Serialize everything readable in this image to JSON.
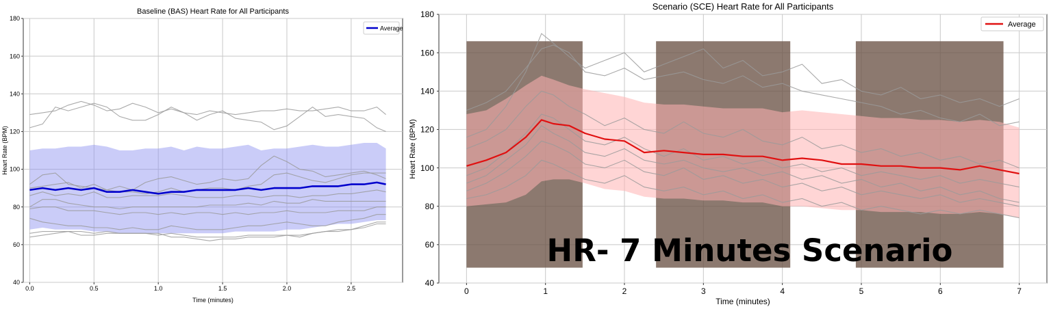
{
  "chart_data": [
    {
      "type": "line",
      "title": "Baseline (BAS) Heart Rate for All Participants",
      "xlabel": "Time (minutes)",
      "ylabel": "Heart Rate (BPM)",
      "xlim": [
        -0.05,
        2.9
      ],
      "ylim": [
        40,
        180
      ],
      "xticks": [
        "0.0",
        "0.5",
        "1.0",
        "1.5",
        "2.0",
        "2.5"
      ],
      "yticks": [
        "40",
        "60",
        "80",
        "100",
        "120",
        "140",
        "160",
        "180"
      ],
      "grid": true,
      "legend": {
        "position": "top-right",
        "entries": [
          "Average"
        ]
      },
      "colors": {
        "average": "#0000cc",
        "band": "#8a8ef0",
        "participants": "#9a9a9a"
      },
      "average": {
        "name": "Average",
        "x": [
          0.0,
          0.1,
          0.2,
          0.3,
          0.4,
          0.5,
          0.6,
          0.7,
          0.8,
          0.9,
          1.0,
          1.1,
          1.2,
          1.3,
          1.4,
          1.5,
          1.6,
          1.7,
          1.8,
          1.9,
          2.0,
          2.1,
          2.2,
          2.3,
          2.4,
          2.5,
          2.6,
          2.7,
          2.77
        ],
        "y": [
          89,
          90,
          89,
          90,
          89,
          90,
          88,
          88,
          89,
          88,
          87,
          88,
          88,
          89,
          89,
          89,
          89,
          90,
          89,
          90,
          90,
          90,
          91,
          91,
          91,
          92,
          92,
          93,
          92
        ]
      },
      "band": {
        "upper": [
          110,
          111,
          111,
          112,
          112,
          113,
          112,
          110,
          110,
          111,
          111,
          112,
          110,
          112,
          111,
          111,
          112,
          113,
          110,
          111,
          111,
          112,
          113,
          112,
          112,
          113,
          114,
          114,
          111
        ],
        "lower": [
          68,
          69,
          68,
          68,
          68,
          67,
          67,
          66,
          66,
          66,
          66,
          66,
          66,
          66,
          66,
          66,
          67,
          67,
          67,
          67,
          68,
          68,
          69,
          70,
          71,
          71,
          72,
          73,
          73
        ]
      },
      "participants": [
        [
          129,
          130,
          131,
          134,
          136,
          134,
          131,
          132,
          135,
          133,
          130,
          132,
          130,
          129,
          131,
          130,
          129,
          130,
          131,
          131,
          132,
          131,
          131,
          132,
          133,
          131,
          131,
          133,
          129
        ],
        [
          122,
          124,
          133,
          131,
          133,
          135,
          133,
          128,
          126,
          126,
          129,
          133,
          130,
          126,
          129,
          131,
          127,
          126,
          125,
          121,
          123,
          128,
          133,
          128,
          129,
          128,
          127,
          122,
          120
        ],
        [
          92,
          97,
          98,
          92,
          91,
          90,
          89,
          91,
          89,
          93,
          95,
          96,
          94,
          92,
          93,
          95,
          94,
          95,
          102,
          107,
          104,
          100,
          99,
          96,
          97,
          98,
          99,
          97,
          95
        ],
        [
          90,
          91,
          92,
          93,
          90,
          92,
          89,
          88,
          88,
          87,
          88,
          90,
          88,
          89,
          90,
          90,
          89,
          91,
          92,
          97,
          98,
          96,
          94,
          93,
          95,
          97,
          98,
          98,
          98
        ],
        [
          86,
          88,
          86,
          87,
          86,
          88,
          85,
          85,
          86,
          86,
          86,
          87,
          86,
          85,
          85,
          85,
          86,
          86,
          85,
          86,
          86,
          85,
          86,
          86,
          87,
          87,
          88,
          89,
          88
        ],
        [
          80,
          84,
          84,
          82,
          81,
          80,
          80,
          79,
          80,
          80,
          80,
          80,
          80,
          80,
          81,
          81,
          81,
          82,
          81,
          83,
          82,
          82,
          84,
          83,
          83,
          83,
          83,
          83,
          83
        ],
        [
          79,
          80,
          80,
          78,
          78,
          78,
          77,
          76,
          77,
          77,
          76,
          77,
          76,
          77,
          77,
          76,
          77,
          76,
          77,
          77,
          78,
          77,
          77,
          77,
          78,
          78,
          78,
          80,
          80
        ],
        [
          74,
          72,
          71,
          70,
          70,
          69,
          69,
          68,
          69,
          68,
          68,
          70,
          69,
          68,
          68,
          68,
          69,
          70,
          70,
          71,
          72,
          71,
          70,
          70,
          72,
          73,
          74,
          76,
          76
        ],
        [
          66,
          67,
          67,
          67,
          67,
          66,
          67,
          66,
          66,
          66,
          65,
          66,
          65,
          64,
          64,
          64,
          64,
          65,
          65,
          65,
          65,
          64,
          66,
          67,
          68,
          68,
          70,
          72,
          72
        ],
        [
          64,
          65,
          66,
          67,
          65,
          65,
          66,
          66,
          66,
          66,
          66,
          64,
          64,
          63,
          62,
          63,
          63,
          64,
          64,
          64,
          65,
          65,
          66,
          67,
          67,
          68,
          69,
          71,
          71
        ]
      ]
    },
    {
      "type": "line",
      "title": "Scenario (SCE) Heart Rate for All Participants",
      "xlabel": "Time (minutes)",
      "ylabel": "Heart Rate (BPM)",
      "xlim": [
        -0.35,
        7.35
      ],
      "ylim": [
        40,
        180
      ],
      "xticks": [
        "0",
        "1",
        "2",
        "3",
        "4",
        "5",
        "6",
        "7"
      ],
      "yticks": [
        "40",
        "60",
        "80",
        "100",
        "120",
        "140",
        "160",
        "180"
      ],
      "grid": true,
      "legend": {
        "position": "top-right",
        "entries": [
          "Average"
        ]
      },
      "overlay_text": "HR- 7 Minutes Scenario",
      "colors": {
        "average": "#e01010",
        "band": "#ffb3b3",
        "participants": "#9a9a9a",
        "photo": "#6b5346"
      },
      "photo_panels": [
        {
          "x0": 0.0,
          "x1": 1.47,
          "y0": 48,
          "y1": 166
        },
        {
          "x0": 2.4,
          "x1": 4.1,
          "y0": 48,
          "y1": 166
        },
        {
          "x0": 4.93,
          "x1": 6.8,
          "y0": 48,
          "y1": 166
        }
      ],
      "average": {
        "name": "Average",
        "x": [
          0.0,
          0.25,
          0.5,
          0.75,
          0.95,
          1.1,
          1.3,
          1.5,
          1.75,
          2.0,
          2.25,
          2.5,
          2.75,
          3.0,
          3.25,
          3.5,
          3.75,
          4.0,
          4.25,
          4.5,
          4.75,
          5.0,
          5.25,
          5.5,
          5.75,
          6.0,
          6.25,
          6.5,
          6.75,
          7.0
        ],
        "y": [
          101,
          104,
          108,
          116,
          125,
          123,
          122,
          118,
          115,
          114,
          108,
          109,
          108,
          107,
          107,
          106,
          106,
          104,
          105,
          104,
          102,
          102,
          101,
          101,
          100,
          100,
          99,
          101,
          99,
          97
        ]
      },
      "band": {
        "upper": [
          128,
          130,
          136,
          143,
          148,
          146,
          143,
          141,
          139,
          137,
          134,
          133,
          133,
          132,
          131,
          131,
          131,
          129,
          130,
          129,
          128,
          127,
          126,
          126,
          125,
          125,
          124,
          125,
          124,
          121
        ],
        "lower": [
          80,
          81,
          82,
          86,
          93,
          94,
          94,
          92,
          89,
          88,
          85,
          84,
          84,
          83,
          83,
          82,
          82,
          80,
          80,
          79,
          78,
          78,
          77,
          77,
          77,
          76,
          76,
          77,
          76,
          74
        ]
      },
      "participants": [
        [
          116,
          120,
          132,
          150,
          170,
          165,
          158,
          152,
          156,
          160,
          150,
          154,
          158,
          162,
          152,
          156,
          148,
          150,
          154,
          144,
          146,
          140,
          138,
          142,
          136,
          138,
          134,
          136,
          132,
          136
        ],
        [
          130,
          134,
          140,
          152,
          162,
          164,
          160,
          150,
          148,
          152,
          146,
          148,
          150,
          146,
          144,
          148,
          142,
          144,
          140,
          138,
          136,
          134,
          132,
          128,
          130,
          126,
          124,
          128,
          122,
          124
        ],
        [
          110,
          114,
          120,
          132,
          140,
          138,
          132,
          128,
          122,
          126,
          120,
          118,
          124,
          118,
          116,
          120,
          114,
          112,
          116,
          110,
          112,
          108,
          110,
          106,
          108,
          104,
          106,
          102,
          104,
          100
        ],
        [
          96,
          100,
          108,
          118,
          128,
          126,
          120,
          114,
          112,
          116,
          110,
          106,
          110,
          104,
          106,
          102,
          104,
          100,
          102,
          98,
          100,
          96,
          98,
          96,
          94,
          96,
          92,
          94,
          92,
          90
        ],
        [
          88,
          92,
          98,
          106,
          114,
          112,
          108,
          102,
          100,
          104,
          98,
          96,
          100,
          94,
          96,
          92,
          94,
          90,
          92,
          88,
          90,
          86,
          88,
          86,
          84,
          86,
          82,
          84,
          82,
          80
        ],
        [
          84,
          86,
          90,
          96,
          104,
          102,
          98,
          94,
          92,
          96,
          90,
          88,
          90,
          86,
          88,
          84,
          86,
          82,
          84,
          80,
          82,
          78,
          80,
          78,
          76,
          78,
          76,
          78,
          76,
          74
        ],
        [
          92,
          96,
          104,
          112,
          122,
          118,
          114,
          108,
          106,
          110,
          104,
          102,
          104,
          100,
          98,
          100,
          96,
          98,
          94,
          96,
          92,
          94,
          90,
          92,
          88,
          90,
          86,
          88,
          84,
          82
        ]
      ]
    }
  ]
}
